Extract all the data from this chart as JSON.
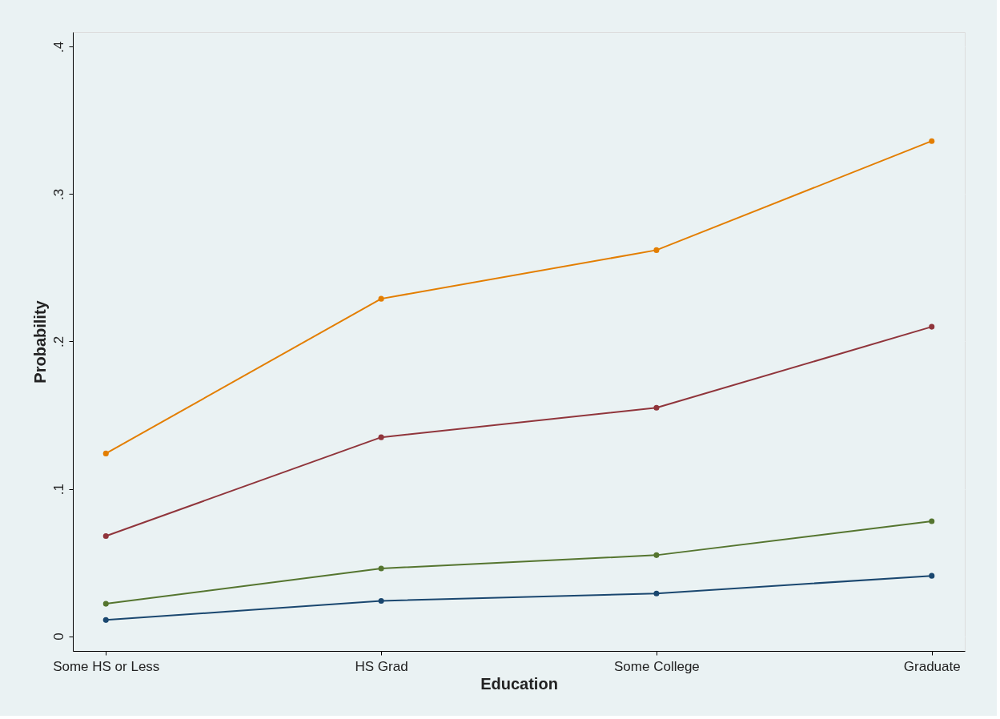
{
  "chart_data": {
    "type": "line",
    "xlabel": "Education",
    "ylabel": "Probability",
    "categories": [
      "Some HS or Less",
      "HS Grad",
      "Some College",
      "Graduate"
    ],
    "series": [
      {
        "color": "#e37e00",
        "values": [
          0.124,
          0.229,
          0.262,
          0.336
        ]
      },
      {
        "color": "#90353b",
        "values": [
          0.068,
          0.135,
          0.155,
          0.21
        ]
      },
      {
        "color": "#55752f",
        "values": [
          0.022,
          0.046,
          0.055,
          0.078
        ]
      },
      {
        "color": "#1a476f",
        "values": [
          0.011,
          0.024,
          0.029,
          0.041
        ]
      }
    ],
    "ylim": [
      -0.01,
      0.41
    ],
    "yticks": [
      0,
      {
        "value": 0.1,
        "label": ".1"
      },
      {
        "value": 0.2,
        "label": ".2"
      },
      {
        "value": 0.3,
        "label": ".3"
      },
      {
        "value": 0.4,
        "label": ".4"
      }
    ],
    "grid": "y",
    "legend": false,
    "marker": "circle",
    "line_style": "solid"
  }
}
